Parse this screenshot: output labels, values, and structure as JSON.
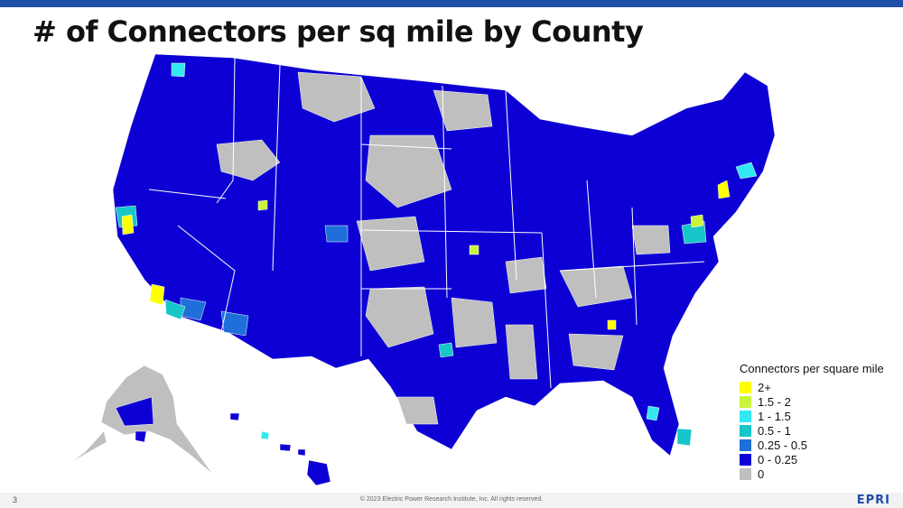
{
  "slide": {
    "title": "# of Connectors per sq mile by County",
    "page_number": "3",
    "copyright": "© 2023 Electric Power Research Institute, Inc. All rights reserved.",
    "logo_text": "EPRI"
  },
  "map": {
    "region": "United States counties",
    "colors": {
      "cat_2plus": "#ffff00",
      "cat_1_5_2": "#c8f53c",
      "cat_1_1_5": "#33e8f2",
      "cat_0_5_1": "#16c6c8",
      "cat_0_25_0_5": "#1e6fd9",
      "cat_0_0_25": "#0d00d4",
      "cat_zero": "#bfbfbf",
      "state_border": "#ffffff"
    }
  },
  "legend": {
    "title": "Connectors per square mile",
    "items": [
      {
        "label": "2+",
        "color": "#ffff00"
      },
      {
        "label": "1.5 - 2",
        "color": "#c8f53c"
      },
      {
        "label": "1 - 1.5",
        "color": "#33e8f2"
      },
      {
        "label": "0.5 - 1",
        "color": "#16c6c8"
      },
      {
        "label": "0.25 - 0.5",
        "color": "#1e6fd9"
      },
      {
        "label": "0 - 0.25",
        "color": "#0d00d4"
      },
      {
        "label": "0",
        "color": "#bfbfbf"
      }
    ]
  }
}
